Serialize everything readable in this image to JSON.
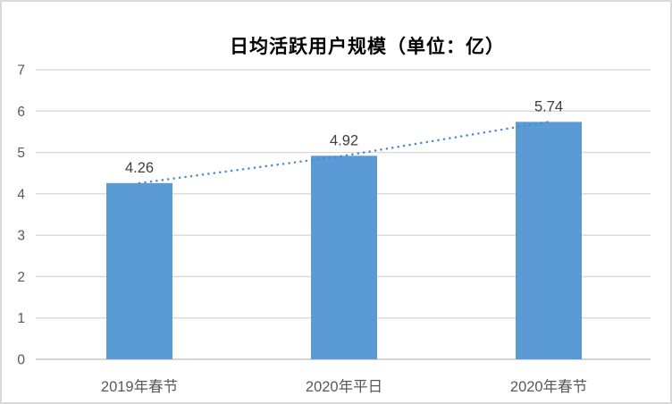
{
  "chart": {
    "title": "日均活跃用户规模（单位：亿）"
  },
  "chart_data": {
    "type": "bar",
    "title": "日均活跃用户规模（单位：亿）",
    "categories": [
      "2019年春节",
      "2020年平日",
      "2020年春节"
    ],
    "values": [
      4.26,
      4.92,
      5.74
    ],
    "data_labels": [
      "4.26",
      "4.92",
      "5.74"
    ],
    "xlabel": "",
    "ylabel": "",
    "ylim": [
      0,
      7
    ],
    "yticks": [
      0,
      1,
      2,
      3,
      4,
      5,
      6,
      7
    ],
    "grid": true,
    "legend": false,
    "trendline": {
      "type": "dotted-line",
      "values": [
        4.26,
        4.92,
        5.74
      ]
    },
    "colors": {
      "bar": "#5B9BD5",
      "trendline": "#4A89D8",
      "gridline": "#D9D9D9",
      "axis_line": "#D0CECE",
      "tick_label": "#595959",
      "category_label": "#595959",
      "data_label": "#404040",
      "title": "#000000",
      "background": "#FFFFFF",
      "border": "#D9D9D9"
    }
  }
}
